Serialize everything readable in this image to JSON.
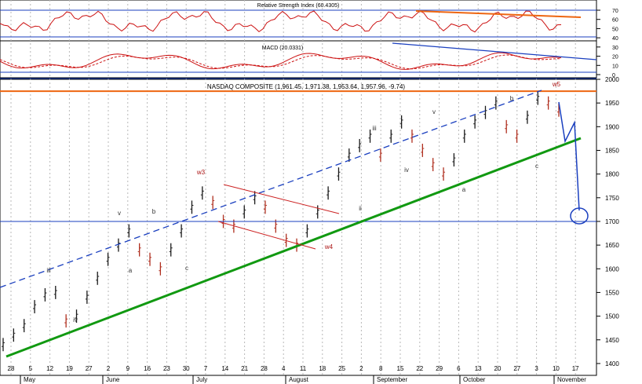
{
  "indicators": {
    "rsi_title": "Relative Strength Index (60.4305)",
    "macd_title": "MACD (20.0331)",
    "right_ticks": [
      "70",
      "60",
      "50",
      "40",
      "30",
      "20",
      "10",
      "0"
    ]
  },
  "chart_data": [
    {
      "type": "line",
      "title": "Relative Strength Index (60.4305)",
      "ylim": [
        0,
        100
      ],
      "reference_lines": [
        70,
        30
      ]
    },
    {
      "type": "line",
      "title": "MACD (20.0331)"
    },
    {
      "type": "candlestick",
      "title": "NASDAQ COMPOSITE (1,961.45, 1,971.38, 1,953.64, 1,957.96, -9.74)",
      "ylim": [
        1375,
        2000
      ],
      "yticks": [
        2000,
        1950,
        1900,
        1850,
        1800,
        1750,
        1700,
        1650,
        1600,
        1550,
        1500,
        1450,
        1400
      ],
      "x_day_labels": [
        "28",
        "5",
        "12",
        "19",
        "27",
        "2",
        "9",
        "16",
        "23",
        "30",
        "7",
        "14",
        "21",
        "28",
        "4",
        "11",
        "18",
        "25",
        "2",
        "8",
        "15",
        "22",
        "29",
        "6",
        "13",
        "20",
        "27",
        "3",
        "10",
        "17"
      ],
      "x_month_labels": [
        "May",
        "June",
        "July",
        "August",
        "September",
        "October",
        "November"
      ],
      "price_path": [
        1440,
        1460,
        1480,
        1520,
        1545,
        1550,
        1490,
        1500,
        1540,
        1580,
        1620,
        1650,
        1680,
        1640,
        1620,
        1600,
        1640,
        1680,
        1730,
        1760,
        1740,
        1700,
        1690,
        1720,
        1750,
        1730,
        1690,
        1660,
        1650,
        1680,
        1720,
        1760,
        1800,
        1840,
        1860,
        1880,
        1840,
        1880,
        1910,
        1880,
        1850,
        1820,
        1800,
        1830,
        1880,
        1910,
        1930,
        1950,
        1900,
        1880,
        1920,
        1960,
        1950,
        1935
      ],
      "horizontal_levels": [
        1975,
        1700
      ],
      "annotations": [
        "iii",
        "iv",
        "v",
        "a",
        "b",
        "c",
        "w3",
        "w4",
        "ii",
        "iii",
        "iv",
        "v",
        "a",
        "b",
        "c",
        "w5"
      ]
    }
  ]
}
